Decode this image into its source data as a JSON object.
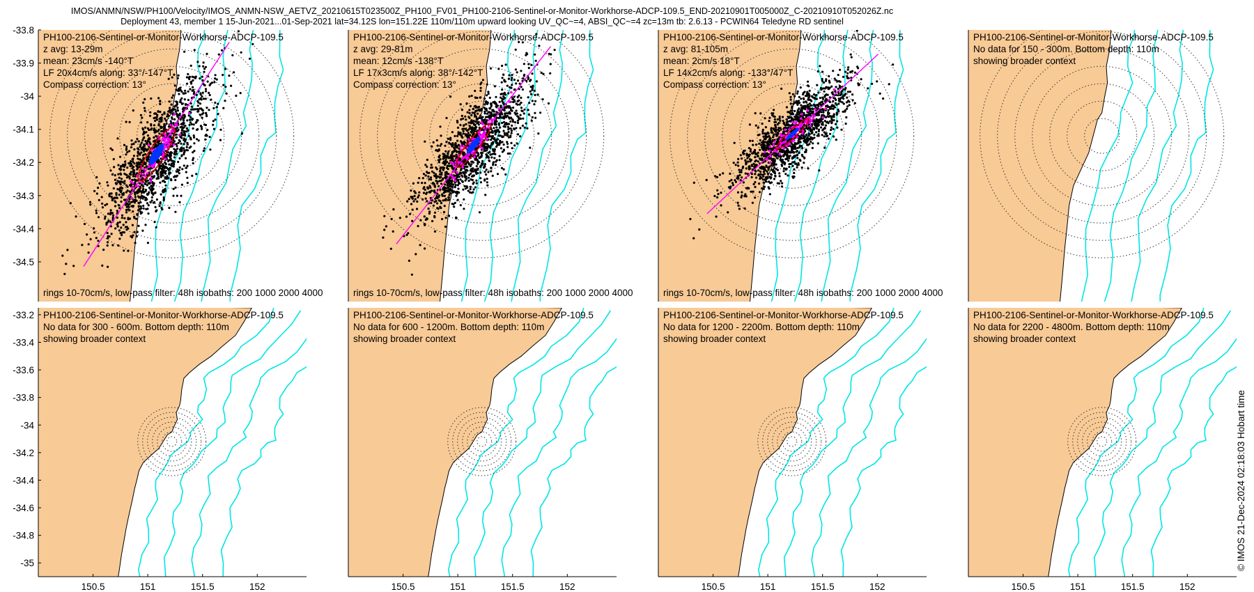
{
  "figure": {
    "title_line1": "IMOS/ANMN/NSW/PH100/Velocity/IMOS_ANMN-NSW_AETVZ_20210615T023500Z_PH100_FV01_PH100-2106-Sentinel-or-Monitor-Workhorse-ADCP-109.5_END-20210901T005000Z_C-20210910T052026Z.nc",
    "title_line2": "Deployment 43, member 1 15-Jun-2021...01-Sep-2021 lat=34.12S lon=151.22E 110m/110m upward looking UV_QC~=4, ABSI_QC~=4 zc=13m tb: 2.6.13 - PCWIN64 Teledyne RD sentinel",
    "footer_text": "rings 10-70cm/s, low-pass filter: 48h isobaths: 200 1000 2000 4000",
    "side_note": "© IMOS 21-Dec-2024 02:18:03 Hobart time"
  },
  "colors": {
    "land": "#f8ca96",
    "isobath": "#00e5e5",
    "scatter": "#000000",
    "lowpass": "#ff00ff",
    "mean_ellipse": "#0033ff",
    "lf_ellipse": "#cc0000"
  },
  "chart_data": {
    "type": "scatter",
    "chart_kind": "current-velocity scatter maps (8 depth bins)",
    "station": {
      "lat": -34.12,
      "lon": 151.22
    },
    "top_row": {
      "xlim": [
        150.0,
        152.45
      ],
      "ylim": [
        -34.62,
        -33.8
      ],
      "yticks": [
        -33.8,
        -33.9,
        -34,
        -34.1,
        -34.2,
        -34.3,
        -34.4,
        -34.5
      ],
      "ytick_labels": [
        "-33.8",
        "-33.9",
        "-34",
        "-34.1",
        "-34.2",
        "-34.3",
        "-34.4",
        "-34.5"
      ]
    },
    "bottom_row": {
      "xlim": [
        150.0,
        152.45
      ],
      "ylim": [
        -35.1,
        -33.15
      ],
      "yticks": [
        -33.2,
        -33.4,
        -33.6,
        -33.8,
        -34,
        -34.2,
        -34.4,
        -34.6,
        -34.8,
        -35
      ],
      "ytick_labels": [
        "-33.2",
        "-33.4",
        "-33.6",
        "-33.8",
        "-34",
        "-34.2",
        "-34.4",
        "-34.6",
        "-34.8",
        "-35"
      ],
      "xticks": [
        150.5,
        151,
        151.5,
        152
      ],
      "xtick_labels": [
        "150.5",
        "151",
        "151.5",
        "152"
      ]
    },
    "rings_cm_s": [
      10,
      20,
      30,
      40,
      50,
      60,
      70
    ],
    "isobaths_m": [
      200,
      1000,
      2000,
      4000
    ],
    "panels": [
      {
        "id": "p1",
        "row": 0,
        "col": 0,
        "has_data": true,
        "lines": [
          "PH100-2106-Sentinel-or-Monitor-Workhorse-ADCP-109.5",
          "z avg: 13-29m",
          "mean: 23cm/s -140°T",
          "LF 20x4cm/s along: 33°/-147°T",
          "Compass correction: 13°"
        ],
        "mean_speed_cm_s": 23,
        "mean_dir_deg_true": -140,
        "lf_major_cm_s": 20,
        "lf_minor_cm_s": 4,
        "along_deg": 33
      },
      {
        "id": "p2",
        "row": 0,
        "col": 1,
        "has_data": true,
        "lines": [
          "PH100-2106-Sentinel-or-Monitor-Workhorse-ADCP-109.5",
          "z avg: 29-81m",
          "mean: 12cm/s -138°T",
          "LF 17x3cm/s along: 38°/-142°T",
          "Compass correction: 13°"
        ],
        "mean_speed_cm_s": 12,
        "mean_dir_deg_true": -138,
        "lf_major_cm_s": 17,
        "lf_minor_cm_s": 3,
        "along_deg": 38
      },
      {
        "id": "p3",
        "row": 0,
        "col": 2,
        "has_data": true,
        "lines": [
          "PH100-2106-Sentinel-or-Monitor-Workhorse-ADCP-109.5",
          "z avg: 81-105m",
          "mean: 2cm/s 18°T",
          "LF 14x2cm/s along: -133°/47°T",
          "Compass correction: 13°"
        ],
        "mean_speed_cm_s": 2,
        "mean_dir_deg_true": 18,
        "lf_major_cm_s": 14,
        "lf_minor_cm_s": 2,
        "along_deg": -133
      },
      {
        "id": "p4",
        "row": 0,
        "col": 3,
        "has_data": false,
        "lines": [
          "PH100-2106-Sentinel-or-Monitor-Workhorse-ADCP-109.5",
          "No data for 150 - 300m. Bottom depth: 110m",
          "showing broader context"
        ]
      },
      {
        "id": "p5",
        "row": 1,
        "col": 0,
        "has_data": false,
        "lines": [
          "PH100-2106-Sentinel-or-Monitor-Workhorse-ADCP-109.5",
          "No data for 300 - 600m. Bottom depth: 110m",
          "showing broader context"
        ]
      },
      {
        "id": "p6",
        "row": 1,
        "col": 1,
        "has_data": false,
        "lines": [
          "PH100-2106-Sentinel-or-Monitor-Workhorse-ADCP-109.5",
          "No data for 600 - 1200m. Bottom depth: 110m",
          "showing broader context"
        ]
      },
      {
        "id": "p7",
        "row": 1,
        "col": 2,
        "has_data": false,
        "lines": [
          "PH100-2106-Sentinel-or-Monitor-Workhorse-ADCP-109.5",
          "No data for 1200 - 2200m. Bottom depth: 110m",
          "showing broader context"
        ]
      },
      {
        "id": "p8",
        "row": 1,
        "col": 3,
        "has_data": false,
        "lines": [
          "PH100-2106-Sentinel-or-Monitor-Workhorse-ADCP-109.5",
          "No data for 2200 - 4800m. Bottom depth: 110m",
          "showing broader context"
        ]
      }
    ]
  }
}
